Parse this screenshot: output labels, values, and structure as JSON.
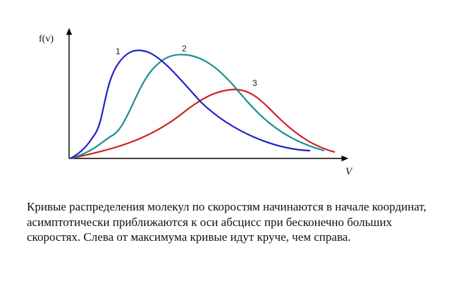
{
  "diagram": {
    "y_axis_label": "f(v)",
    "x_axis_label": "V",
    "curves": [
      {
        "label": "1",
        "color": "#2020c8"
      },
      {
        "label": "2",
        "color": "#1a9090"
      },
      {
        "label": "3",
        "color": "#d02020"
      }
    ],
    "axis_color": "#000000"
  },
  "caption": "Кривые распределения молекул по скоростям начинаются в начале координат, асимптотически приближаются к оси абсцисс при бесконечно больших скоростях. Слева от максимума кривые идут круче, чем справа."
}
